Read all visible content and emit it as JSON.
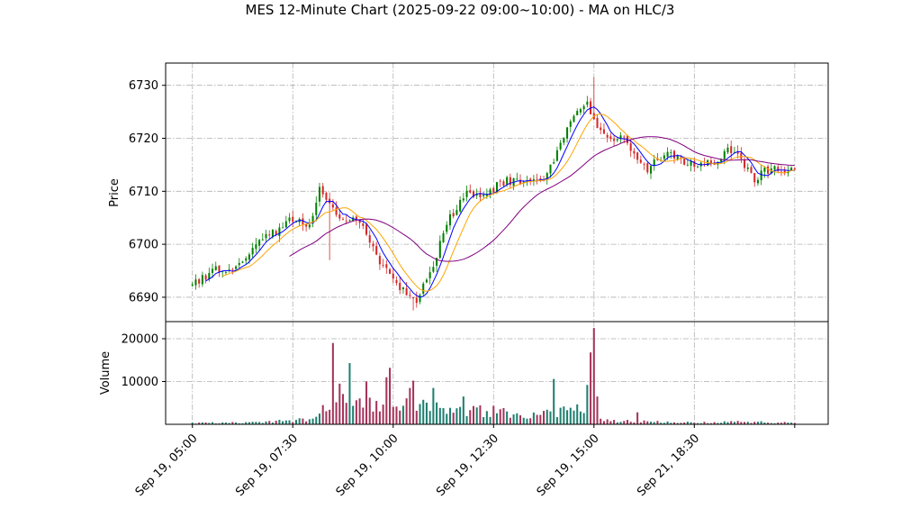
{
  "chart_data": {
    "type": "candlestick",
    "title": "MES 12-Minute Chart (2025-09-22 09:00~10:00) - MA on HLC/3",
    "price_panel": {
      "ylabel": "Price",
      "ylim": [
        6685.4,
        6734.2
      ],
      "yticks": [
        6690,
        6700,
        6710,
        6720,
        6730
      ],
      "grid": true
    },
    "volume_panel": {
      "ylabel": "Volume",
      "ylim": [
        0,
        24000
      ],
      "yticks": [
        10000,
        20000
      ],
      "grid": true
    },
    "xlim": [
      -8,
      190
    ],
    "x_ticks": [
      {
        "i": 0,
        "label": "Sep 19, 05:00"
      },
      {
        "i": 30,
        "label": "Sep 19, 07:30"
      },
      {
        "i": 60,
        "label": "Sep 19, 10:00"
      },
      {
        "i": 90,
        "label": "Sep 19, 12:30"
      },
      {
        "i": 120,
        "label": "Sep 19, 15:00"
      },
      {
        "i": 150,
        "label": "Sep 21, 18:30"
      },
      {
        "i": 180,
        "label": ""
      }
    ],
    "colors": {
      "up": "#008000",
      "down": "#d62728",
      "ma_fast": "#0000ff",
      "ma_mid": "#ffa500",
      "ma_slow": "#800080"
    },
    "close_anchors": [
      [
        0,
        6692.5
      ],
      [
        4,
        6694
      ],
      [
        8,
        6695.5
      ],
      [
        12,
        6695
      ],
      [
        16,
        6697.5
      ],
      [
        20,
        6700.5
      ],
      [
        24,
        6702
      ],
      [
        28,
        6704
      ],
      [
        32,
        6705
      ],
      [
        35,
        6703
      ],
      [
        38,
        6710.5
      ],
      [
        41,
        6707
      ],
      [
        44,
        6705
      ],
      [
        47,
        6704.5
      ],
      [
        50,
        6704
      ],
      [
        53,
        6701
      ],
      [
        56,
        6697
      ],
      [
        59,
        6694
      ],
      [
        62,
        6692
      ],
      [
        65,
        6690
      ],
      [
        67,
        6689.5
      ],
      [
        70,
        6693
      ],
      [
        73,
        6698
      ],
      [
        76,
        6704
      ],
      [
        79,
        6707
      ],
      [
        82,
        6709.5
      ],
      [
        85,
        6709.5
      ],
      [
        88,
        6709.5
      ],
      [
        91,
        6711
      ],
      [
        94,
        6712
      ],
      [
        97,
        6712
      ],
      [
        100,
        6711.5
      ],
      [
        103,
        6712
      ],
      [
        106,
        6713
      ],
      [
        109,
        6717
      ],
      [
        112,
        6722
      ],
      [
        115,
        6725
      ],
      [
        118,
        6727
      ],
      [
        120,
        6723
      ],
      [
        121,
        6722
      ],
      [
        124,
        6719.5
      ],
      [
        127,
        6720.5
      ],
      [
        130,
        6719
      ],
      [
        133,
        6716
      ],
      [
        136,
        6714
      ],
      [
        139,
        6716
      ],
      [
        142,
        6717
      ],
      [
        145,
        6716
      ],
      [
        148,
        6715.5
      ],
      [
        151,
        6715
      ],
      [
        154,
        6715.5
      ],
      [
        157,
        6716
      ],
      [
        160,
        6718.5
      ],
      [
        163,
        6716.5
      ],
      [
        166,
        6714
      ],
      [
        168,
        6711.5
      ],
      [
        171,
        6714
      ],
      [
        174,
        6714
      ],
      [
        177,
        6713.5
      ],
      [
        180,
        6714
      ]
    ],
    "volume_anchors": [
      [
        0,
        300
      ],
      [
        20,
        450
      ],
      [
        35,
        1200
      ],
      [
        40,
        4000
      ],
      [
        42,
        7000
      ],
      [
        44,
        6500
      ],
      [
        50,
        5500
      ],
      [
        60,
        4500
      ],
      [
        70,
        4200
      ],
      [
        80,
        3600
      ],
      [
        90,
        2800
      ],
      [
        100,
        2200
      ],
      [
        108,
        2600
      ],
      [
        116,
        3400
      ],
      [
        121,
        1400
      ],
      [
        124,
        900
      ],
      [
        135,
        700
      ],
      [
        150,
        400
      ],
      [
        165,
        600
      ],
      [
        180,
        350
      ]
    ],
    "volume_spikes": [
      [
        42,
        19000
      ],
      [
        44,
        9500
      ],
      [
        47,
        14300
      ],
      [
        52,
        10000
      ],
      [
        58,
        11000
      ],
      [
        59,
        13200
      ],
      [
        65,
        8500
      ],
      [
        66,
        10200
      ],
      [
        72,
        8500
      ],
      [
        81,
        6500
      ],
      [
        90,
        4300
      ],
      [
        108,
        10600
      ],
      [
        118,
        9200
      ],
      [
        119,
        16800
      ],
      [
        120,
        22500
      ],
      [
        121,
        6500
      ],
      [
        133,
        2800
      ]
    ],
    "ma_windows": [
      5,
      10,
      30
    ]
  }
}
